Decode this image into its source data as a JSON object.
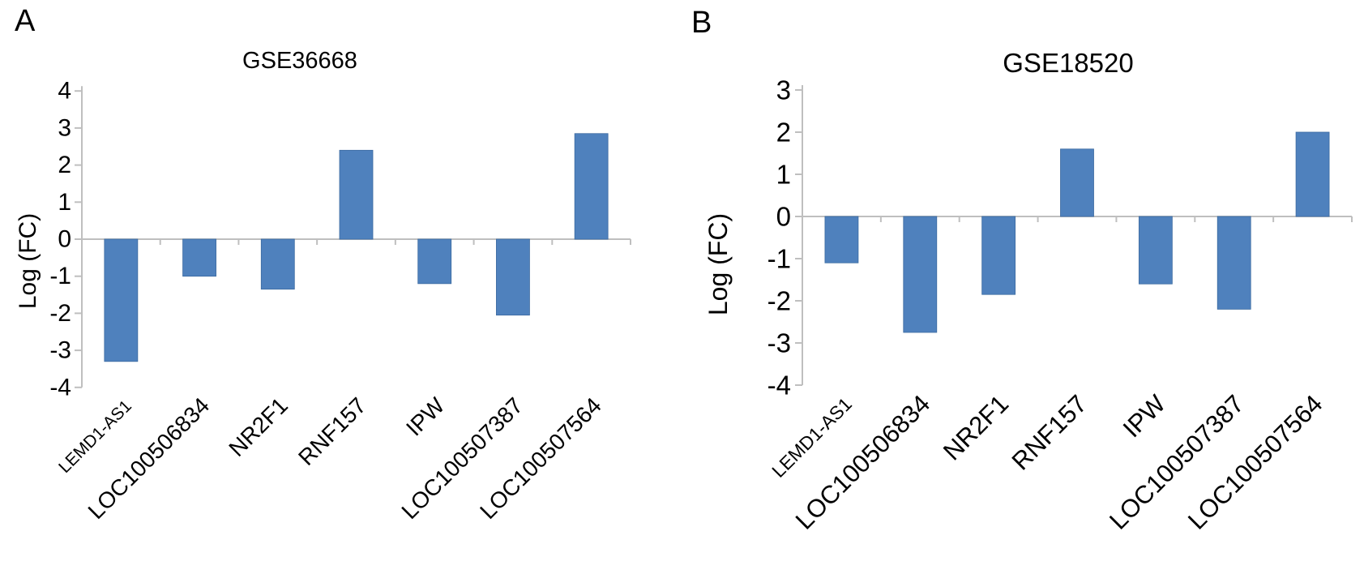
{
  "figure": {
    "background": "#ffffff",
    "colors": {
      "bar": "#4F81BD",
      "bar_edge": "#3B6AA0",
      "axis": "#BFBFBF",
      "text": "#000000"
    }
  },
  "chart_data": [
    {
      "type": "bar",
      "panel_letter": "A",
      "title": "GSE36668",
      "xlabel": "",
      "ylabel": "Log (FC)",
      "ylim": [
        -4,
        4
      ],
      "ytick_step": 1,
      "yticks": [
        4,
        3,
        2,
        1,
        0,
        -1,
        -2,
        -3,
        -4
      ],
      "grid": false,
      "legend": "none",
      "categories": [
        "LEMD1-AS1",
        "LOC100506834",
        "NR2F1",
        "RNF157",
        "IPW",
        "LOC100507387",
        "LOC100507564"
      ],
      "values": [
        -3.3,
        -1.0,
        -1.35,
        2.4,
        -1.2,
        -2.05,
        2.85
      ],
      "small_font_category": "LEMD1-AS1"
    },
    {
      "type": "bar",
      "panel_letter": "B",
      "title": "GSE18520",
      "xlabel": "",
      "ylabel": "Log (FC)",
      "ylim": [
        -4,
        3
      ],
      "ytick_step": 1,
      "yticks": [
        3,
        2,
        1,
        0,
        -1,
        -2,
        -3,
        -4
      ],
      "grid": false,
      "legend": "none",
      "categories": [
        "LEMD1-AS1",
        "LOC100506834",
        "NR2F1",
        "RNF157",
        "IPW",
        "LOC100507387",
        "LOC100507564"
      ],
      "values": [
        -1.1,
        -2.75,
        -1.85,
        1.6,
        -1.6,
        -2.2,
        2.0
      ],
      "small_font_category": "LEMD1-AS1"
    }
  ]
}
